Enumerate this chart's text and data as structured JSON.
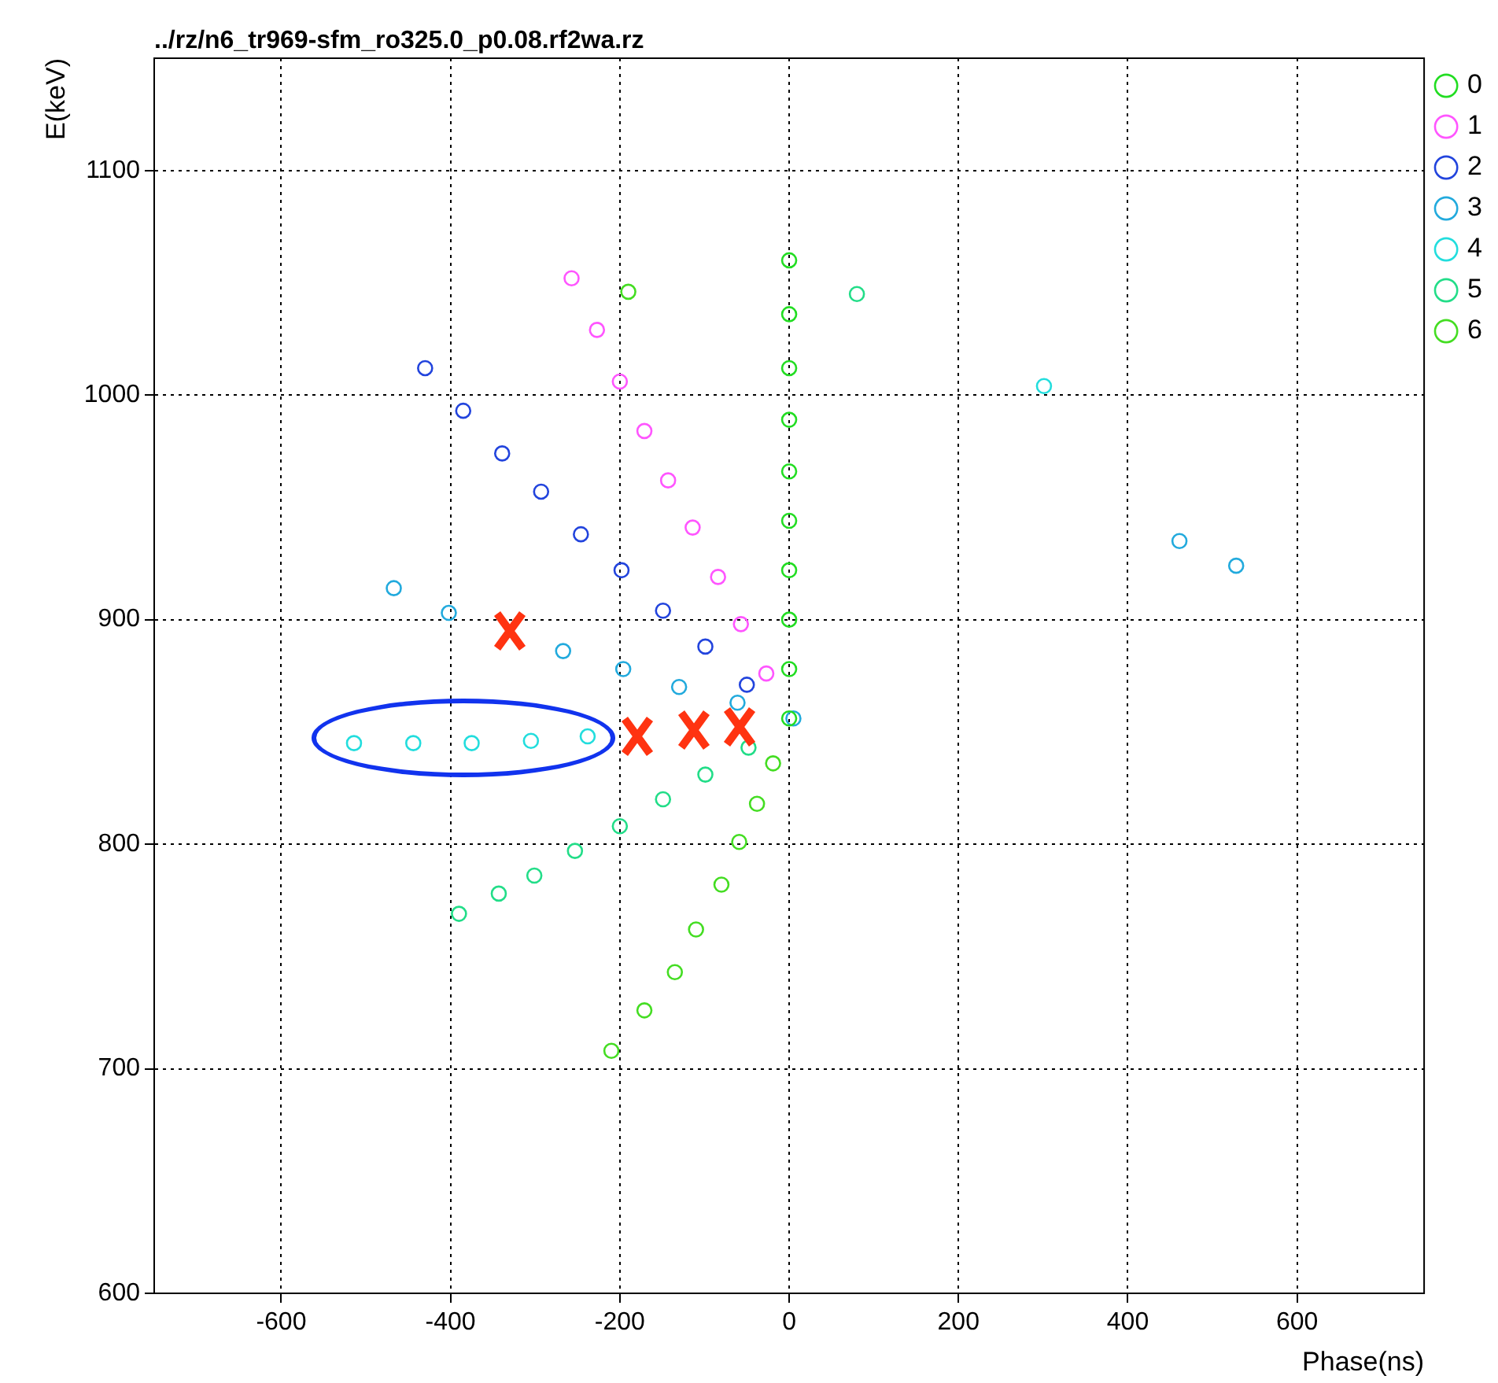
{
  "chart_data": {
    "type": "scatter",
    "title": "../rz/n6_tr969-sfm_ro325.0_p0.08.rf2wa.rz",
    "xlabel": "Phase(ns)",
    "ylabel": "E(keV)",
    "xlim": [
      -750,
      750
    ],
    "xticks": [
      -600,
      -400,
      -200,
      0,
      200,
      400,
      600
    ],
    "ylim": [
      600,
      1150
    ],
    "yticks": [
      600,
      700,
      800,
      900,
      1000,
      1100
    ],
    "grid": true,
    "legend": "right",
    "marker": "circle",
    "series": [
      {
        "name": "0",
        "color": "#22dd22",
        "x": [
          0,
          0,
          0,
          0,
          0,
          0,
          0,
          0,
          0,
          0
        ],
        "values": [
          1060,
          1036,
          1012,
          989,
          966,
          944,
          922,
          900,
          878,
          856
        ]
      },
      {
        "name": "1",
        "color": "#ff55ff",
        "x": [
          -257,
          -227,
          -200,
          -171,
          -143,
          -114,
          -84,
          -57,
          -27
        ],
        "values": [
          1052,
          1029,
          1006,
          984,
          962,
          941,
          919,
          898,
          876
        ]
      },
      {
        "name": "2",
        "color": "#2244dd",
        "x": [
          -430,
          -385,
          -339,
          -293,
          -246,
          -198,
          -149,
          -99,
          -50
        ],
        "values": [
          1012,
          993,
          974,
          957,
          938,
          922,
          904,
          888,
          871
        ]
      },
      {
        "name": "3",
        "color": "#22aadd",
        "x": [
          -467,
          -402,
          -267,
          -196,
          -130,
          -61,
          5,
          461,
          528
        ],
        "values": [
          914,
          903,
          886,
          878,
          870,
          863,
          856,
          935,
          924
        ]
      },
      {
        "name": "4",
        "color": "#22dddd",
        "x": [
          -514,
          -444,
          -375,
          -305,
          -238,
          301
        ],
        "values": [
          845,
          845,
          845,
          846,
          848,
          1004
        ]
      },
      {
        "name": "5",
        "color": "#22dd88",
        "x": [
          80,
          -149,
          -99,
          -48,
          -200,
          -253,
          -301,
          -343,
          -390
        ],
        "values": [
          1045,
          820,
          831,
          843,
          808,
          797,
          786,
          778,
          769
        ]
      },
      {
        "name": "6",
        "color": "#44dd22",
        "x": [
          -190,
          -210,
          -171,
          -135,
          -110,
          -80,
          -59,
          -38,
          -19
        ],
        "values": [
          1046,
          708,
          726,
          743,
          762,
          782,
          801,
          818,
          836
        ]
      }
    ]
  }
}
